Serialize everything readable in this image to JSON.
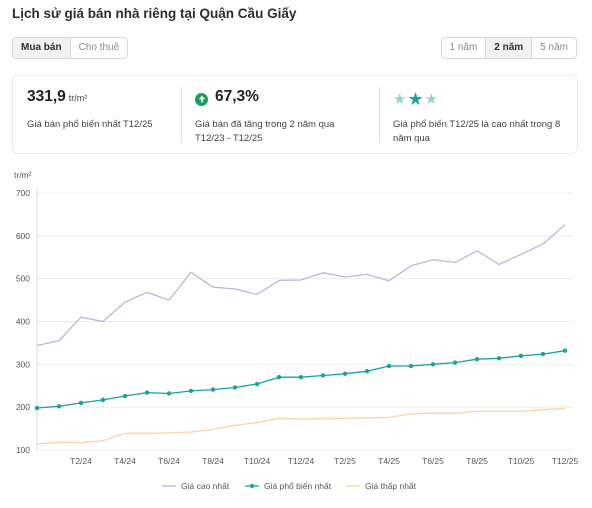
{
  "header": {
    "title": "Lịch sử giá bán nhà riêng tại Quận Cầu Giấy"
  },
  "type_toggle": {
    "options": [
      "Mua bán",
      "Cho thuê"
    ],
    "active": 0
  },
  "range_toggle": {
    "options": [
      "1 năm",
      "2 năm",
      "5 năm"
    ],
    "active": 1
  },
  "stats": [
    {
      "value": "331,9",
      "unit": "tr/m²",
      "desc": "Giá bán phổ biến nhất T12/25"
    },
    {
      "value": "67,3%",
      "desc": "Giá bán đã tăng trong 2 năm qua T12/23 - T12/25",
      "icon": "arrow-up-circle-icon"
    },
    {
      "stars_filled": 1,
      "stars_total": 3,
      "desc": "Giá phổ biến T12/25 là cao nhất trong 8 năm qua"
    }
  ],
  "colors": {
    "high": "#c0b4dc",
    "common": "#1aa39a",
    "low": "#f8d4a8",
    "up": "#18a05b",
    "star_filled": "#1aa39a",
    "star_empty": "#8fd4d0"
  },
  "chart_data": {
    "type": "line",
    "ylabel": "tr/m²",
    "ylim": [
      100,
      700
    ],
    "yticks": [
      100,
      200,
      300,
      400,
      500,
      600,
      700
    ],
    "x": [
      "T12/23",
      "T1/24",
      "T2/24",
      "T3/24",
      "T4/24",
      "T5/24",
      "T6/24",
      "T7/24",
      "T8/24",
      "T9/24",
      "T10/24",
      "T11/24",
      "T12/24",
      "T1/25",
      "T2/25",
      "T3/25",
      "T4/25",
      "T5/25",
      "T6/25",
      "T7/25",
      "T8/25",
      "T9/25",
      "T10/25",
      "T11/25",
      "T12/25"
    ],
    "xtick_labels": [
      "T2/24",
      "T4/24",
      "T6/24",
      "T8/24",
      "T10/24",
      "T12/24",
      "T2/25",
      "T4/25",
      "T6/25",
      "T8/25",
      "T10/25",
      "T12/25"
    ],
    "series": [
      {
        "name": "Giá cao nhất",
        "key": "high",
        "markers": false,
        "values": [
          344,
          355,
          410,
          400,
          445,
          468,
          450,
          515,
          480,
          476,
          463,
          496,
          497,
          514,
          504,
          510,
          495,
          530,
          544,
          538,
          565,
          533,
          557,
          581,
          626
        ]
      },
      {
        "name": "Giá phổ biến nhất",
        "key": "common",
        "markers": true,
        "values": [
          198,
          202,
          210,
          217,
          226,
          234,
          232,
          238,
          241,
          246,
          254,
          270,
          270,
          274,
          278,
          284,
          296,
          296,
          300,
          304,
          312,
          314,
          320,
          324,
          331.9
        ]
      },
      {
        "name": "Giá thấp nhất",
        "key": "low",
        "markers": false,
        "values": [
          114,
          118,
          117,
          122,
          139,
          139,
          140,
          142,
          148,
          158,
          164,
          174,
          172,
          173,
          174,
          175,
          176,
          184,
          186,
          186,
          190,
          190,
          190,
          194,
          197
        ]
      }
    ],
    "legend": "bottom"
  }
}
